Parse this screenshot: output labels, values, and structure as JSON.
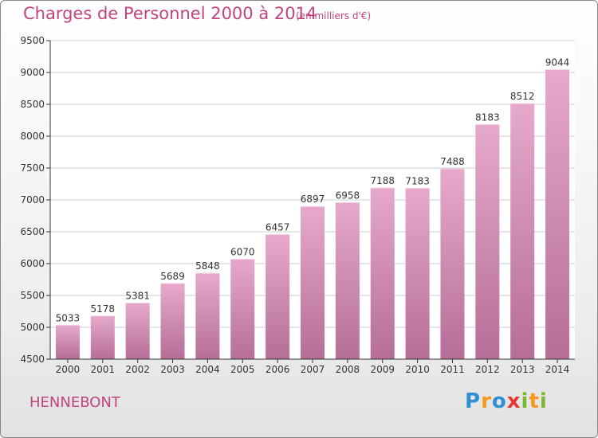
{
  "chart_data": {
    "type": "bar",
    "title": "Charges de Personnel 2000 à 2014",
    "subtitle": "(en milliers d'€)",
    "categories": [
      "2000",
      "2001",
      "2002",
      "2003",
      "2004",
      "2005",
      "2006",
      "2007",
      "2008",
      "2009",
      "2010",
      "2011",
      "2012",
      "2013",
      "2014"
    ],
    "values": [
      5033,
      5178,
      5381,
      5689,
      5848,
      6070,
      6457,
      6897,
      6958,
      7188,
      7183,
      7488,
      8183,
      8512,
      9044
    ],
    "ylim": [
      4500,
      9500
    ],
    "yticks": [
      4500,
      5000,
      5500,
      6000,
      6500,
      7000,
      7500,
      8000,
      8500,
      9000,
      9500
    ],
    "grid": true,
    "bar_color_top": "#e6a9cc",
    "bar_color_bottom": "#b56e98"
  },
  "location": "HENNEBONT",
  "logo": {
    "text": "Proxiti",
    "letters": [
      {
        "ch": "P",
        "color": "#2f8fd3"
      },
      {
        "ch": "r",
        "color": "#f39a1e"
      },
      {
        "ch": "o",
        "color": "#2f8fd3"
      },
      {
        "ch": "x",
        "color": "#e23a2e"
      },
      {
        "ch": "i",
        "color": "#7cb82f"
      },
      {
        "ch": "t",
        "color": "#f39a1e"
      },
      {
        "ch": "i",
        "color": "#7cb82f"
      }
    ]
  }
}
